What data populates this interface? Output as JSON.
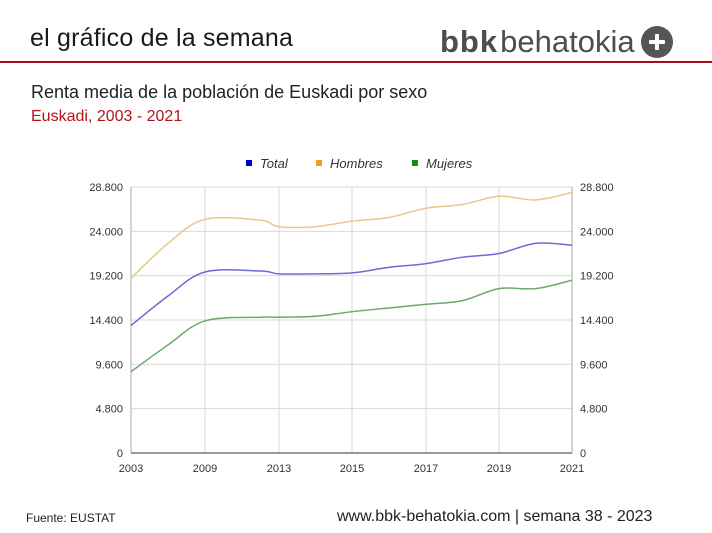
{
  "header": {
    "title": "el gráfico de la semana",
    "logo_bold": "bbk",
    "logo_rest": "behatokia",
    "logo_icon": "plus-circle-icon",
    "rule_color": "#a50f15"
  },
  "chart_data": {
    "type": "line",
    "title": "Renta media de la población de Euskadi por sexo",
    "subtitle": "Euskadi, 2003 - 2021",
    "x": [
      2003,
      2006,
      2009,
      2012,
      2013,
      2014,
      2015,
      2016,
      2017,
      2018,
      2019,
      2020,
      2021
    ],
    "x_ticks": [
      "2003",
      "2009",
      "2013",
      "2015",
      "2017",
      "2019",
      "2021"
    ],
    "y_ticks": [
      "0",
      "4.800",
      "9.600",
      "14.400",
      "19.200",
      "24.000",
      "28.800"
    ],
    "ylim": [
      0,
      28800
    ],
    "grid": true,
    "legend_position": "top-center",
    "series": [
      {
        "name": "Total",
        "color": "#0000cc",
        "line_color": "#6b6bd6",
        "values": [
          13800,
          17000,
          19600,
          19700,
          19400,
          19400,
          19500,
          20100,
          20500,
          21200,
          21600,
          22700,
          22500
        ]
      },
      {
        "name": "Hombres",
        "color": "#f0a020",
        "line_color": "#e8c88a",
        "values": [
          18900,
          22700,
          25300,
          25200,
          24500,
          24500,
          25100,
          25500,
          26500,
          26900,
          27800,
          27400,
          28200
        ]
      },
      {
        "name": "Mujeres",
        "color": "#1a8a1a",
        "line_color": "#6aaa6a",
        "values": [
          8800,
          11700,
          14300,
          14700,
          14700,
          14800,
          15300,
          15700,
          16100,
          16500,
          17800,
          17800,
          18700
        ]
      }
    ]
  },
  "source": "Fuente: EUSTAT",
  "footer": "www.bbk-behatokia.com | semana 38 - 2023"
}
